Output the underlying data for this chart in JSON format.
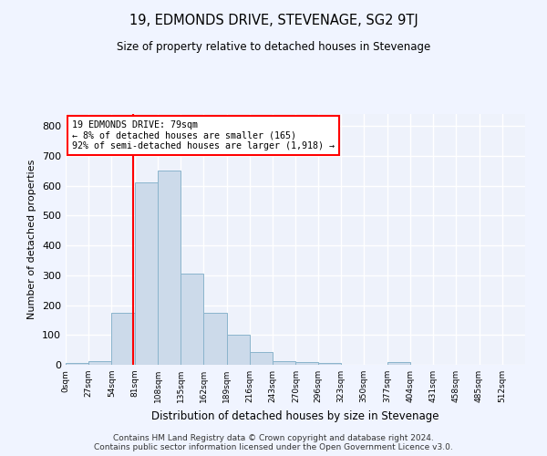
{
  "title": "19, EDMONDS DRIVE, STEVENAGE, SG2 9TJ",
  "subtitle": "Size of property relative to detached houses in Stevenage",
  "xlabel": "Distribution of detached houses by size in Stevenage",
  "ylabel": "Number of detached properties",
  "bar_color": "#ccdaea",
  "bar_edge_color": "#8ab4cc",
  "background_color": "#eef2fb",
  "grid_color": "#ffffff",
  "red_line_x": 79,
  "annotation_text": "19 EDMONDS DRIVE: 79sqm\n← 8% of detached houses are smaller (165)\n92% of semi-detached houses are larger (1,918) →",
  "bin_edges": [
    0,
    27,
    54,
    81,
    108,
    135,
    162,
    189,
    216,
    243,
    270,
    296,
    323,
    350,
    377,
    404,
    431,
    458,
    485,
    512,
    539
  ],
  "bar_heights": [
    5,
    12,
    175,
    610,
    650,
    305,
    175,
    100,
    42,
    12,
    8,
    5,
    0,
    0,
    8,
    0,
    0,
    0,
    0,
    0
  ],
  "ylim": [
    0,
    840
  ],
  "yticks": [
    0,
    100,
    200,
    300,
    400,
    500,
    600,
    700,
    800
  ],
  "footer_line1": "Contains HM Land Registry data © Crown copyright and database right 2024.",
  "footer_line2": "Contains public sector information licensed under the Open Government Licence v3.0."
}
